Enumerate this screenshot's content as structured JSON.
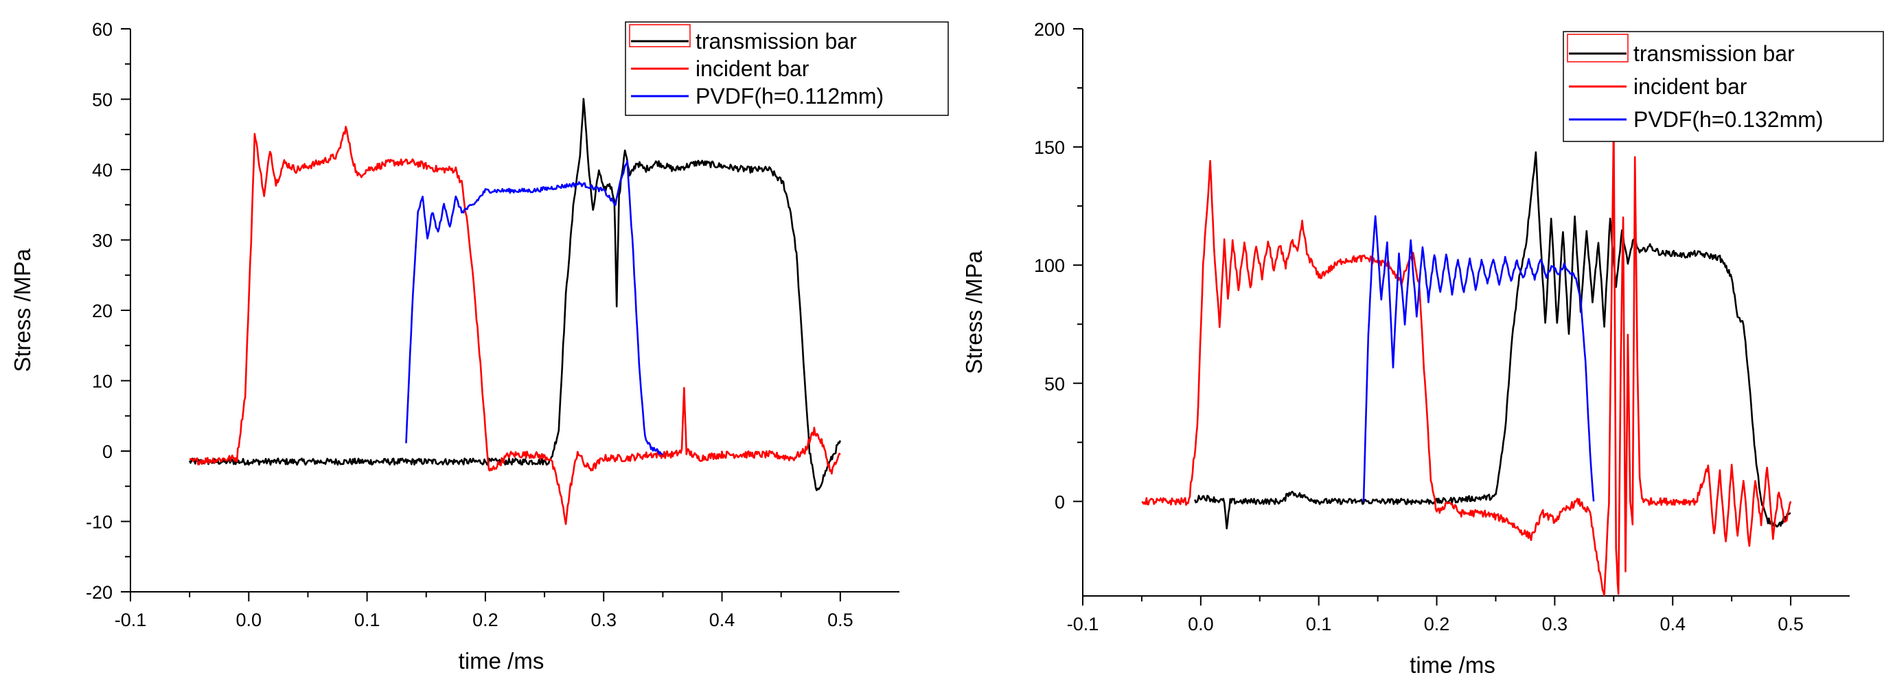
{
  "chart_data": [
    {
      "type": "line",
      "xlabel": "time /ms",
      "ylabel": "Stress /MPa",
      "xlim": [
        -0.1,
        0.55
      ],
      "ylim": [
        -20,
        60
      ],
      "xticks": [
        -0.1,
        0,
        0.1,
        0.2,
        0.3,
        0.4,
        0.5
      ],
      "xtick_labels": [
        "-0.1",
        "0.0",
        "0.1",
        "0.2",
        "0.3",
        "0.4",
        "0.5"
      ],
      "yticks": [
        -20,
        -10,
        0,
        10,
        20,
        30,
        40,
        50,
        60
      ],
      "ytick_labels": [
        "-20",
        "-10",
        "0",
        "10",
        "20",
        "30",
        "40",
        "50",
        "60"
      ],
      "legend_position": "top-right",
      "series": [
        {
          "name": "transmission bar",
          "color": "#000000",
          "noise": 0.45,
          "x": [
            -0.05,
            0.0,
            0.1,
            0.2,
            0.255,
            0.262,
            0.268,
            0.275,
            0.28,
            0.283,
            0.287,
            0.291,
            0.296,
            0.3,
            0.305,
            0.309,
            0.311,
            0.313,
            0.318,
            0.322,
            0.328,
            0.335,
            0.345,
            0.36,
            0.38,
            0.4,
            0.42,
            0.44,
            0.452,
            0.458,
            0.463,
            0.468,
            0.474,
            0.48,
            0.485,
            0.49,
            0.5
          ],
          "y": [
            -1.5,
            -1.5,
            -1.5,
            -1.5,
            -1.5,
            3,
            22,
            36,
            42,
            50,
            41,
            34,
            40,
            37,
            38,
            36,
            21,
            36,
            43,
            39,
            41,
            40,
            41,
            40,
            41,
            40.5,
            40,
            40,
            38,
            34,
            28,
            15,
            0,
            -6,
            -4,
            -2,
            1.5
          ]
        },
        {
          "name": "incident bar",
          "color": "#ff0000",
          "noise": 0.5,
          "x": [
            -0.05,
            -0.01,
            -0.003,
            0.002,
            0.005,
            0.008,
            0.013,
            0.018,
            0.023,
            0.03,
            0.04,
            0.06,
            0.075,
            0.082,
            0.087,
            0.092,
            0.1,
            0.12,
            0.14,
            0.16,
            0.175,
            0.18,
            0.185,
            0.19,
            0.195,
            0.2,
            0.203,
            0.21,
            0.22,
            0.24,
            0.255,
            0.262,
            0.268,
            0.272,
            0.278,
            0.284,
            0.29,
            0.3,
            0.32,
            0.34,
            0.36,
            0.366,
            0.368,
            0.37,
            0.38,
            0.4,
            0.44,
            0.46,
            0.47,
            0.478,
            0.485,
            0.492,
            0.5
          ],
          "y": [
            -1.5,
            -1,
            8,
            30,
            45,
            42,
            36,
            43,
            38,
            41,
            40,
            41,
            42,
            46,
            42,
            39,
            40,
            41,
            41,
            40,
            40,
            38,
            32,
            24,
            14,
            3,
            -3,
            -2,
            -0.5,
            -0.5,
            -1,
            -5,
            -10,
            -5,
            0,
            -2,
            -2.5,
            -1,
            -1,
            -0.5,
            -0.5,
            0,
            9,
            0,
            -1,
            -0.5,
            -0.5,
            -1,
            0,
            3,
            1,
            -3,
            -0.5
          ]
        },
        {
          "name": "PVDF(h=0.112mm)",
          "color": "#0000ff",
          "noise": 0.3,
          "x": [
            0.133,
            0.138,
            0.143,
            0.147,
            0.151,
            0.155,
            0.16,
            0.165,
            0.17,
            0.175,
            0.18,
            0.19,
            0.2,
            0.22,
            0.24,
            0.26,
            0.28,
            0.3,
            0.31,
            0.315,
            0.32,
            0.325,
            0.33,
            0.335,
            0.34,
            0.345,
            0.35
          ],
          "y": [
            1,
            20,
            34,
            36,
            30,
            34,
            31,
            35,
            32,
            36,
            34,
            35,
            37,
            37,
            37,
            37.5,
            38,
            37,
            35,
            39,
            41,
            28,
            12,
            2,
            0.5,
            0,
            -0.5
          ]
        }
      ]
    },
    {
      "type": "line",
      "xlabel": "time /ms",
      "ylabel": "Stress /MPa",
      "xlim": [
        -0.1,
        0.55
      ],
      "ylim": [
        -40,
        200
      ],
      "xticks": [
        -0.1,
        0,
        0.1,
        0.2,
        0.3,
        0.4,
        0.5
      ],
      "xtick_labels": [
        "-0.1",
        "0.0",
        "0.1",
        "0.2",
        "0.3",
        "0.4",
        "0.5"
      ],
      "yticks": [
        0,
        50,
        100,
        150,
        200
      ],
      "ytick_labels": [
        "0",
        "50",
        "100",
        "150",
        "200"
      ],
      "legend_position": "top-right",
      "series": [
        {
          "name": "transmission bar",
          "color": "#000000",
          "noise": 1.2,
          "x": [
            -0.005,
            0.0,
            0.02,
            0.022,
            0.025,
            0.05,
            0.07,
            0.075,
            0.1,
            0.15,
            0.2,
            0.25,
            0.258,
            0.264,
            0.27,
            0.276,
            0.28,
            0.284,
            0.288,
            0.292,
            0.297,
            0.302,
            0.307,
            0.312,
            0.317,
            0.322,
            0.327,
            0.332,
            0.337,
            0.342,
            0.347,
            0.352,
            0.357,
            0.362,
            0.367,
            0.372,
            0.38,
            0.39,
            0.4,
            0.41,
            0.42,
            0.43,
            0.44,
            0.45,
            0.455,
            0.46,
            0.465,
            0.47,
            0.475,
            0.48,
            0.49,
            0.5
          ],
          "y": [
            0,
            2,
            0,
            -12,
            0,
            0,
            0,
            4,
            0,
            0,
            0,
            2,
            30,
            70,
            95,
            110,
            130,
            147,
            110,
            75,
            120,
            75,
            115,
            70,
            120,
            80,
            115,
            85,
            110,
            75,
            120,
            90,
            115,
            100,
            112,
            105,
            108,
            105,
            105,
            104,
            105,
            104,
            103,
            95,
            78,
            75,
            50,
            20,
            0,
            -8,
            -10,
            -5
          ]
        },
        {
          "name": "incident bar",
          "color": "#ff0000",
          "noise": 1.5,
          "x": [
            -0.05,
            -0.01,
            -0.003,
            0.002,
            0.008,
            0.012,
            0.016,
            0.02,
            0.023,
            0.027,
            0.032,
            0.037,
            0.042,
            0.047,
            0.052,
            0.057,
            0.062,
            0.067,
            0.072,
            0.077,
            0.082,
            0.086,
            0.09,
            0.095,
            0.1,
            0.12,
            0.14,
            0.16,
            0.17,
            0.175,
            0.18,
            0.185,
            0.19,
            0.195,
            0.2,
            0.21,
            0.22,
            0.24,
            0.26,
            0.27,
            0.28,
            0.29,
            0.3,
            0.31,
            0.32,
            0.33,
            0.336,
            0.342,
            0.346,
            0.35,
            0.352,
            0.354,
            0.356,
            0.358,
            0.36,
            0.362,
            0.364,
            0.366,
            0.368,
            0.37,
            0.372,
            0.374,
            0.376,
            0.4,
            0.42,
            0.43,
            0.435,
            0.44,
            0.445,
            0.45,
            0.455,
            0.46,
            0.465,
            0.47,
            0.475,
            0.48,
            0.485,
            0.49,
            0.495,
            0.5
          ],
          "y": [
            0,
            0,
            30,
            100,
            143,
            100,
            75,
            110,
            85,
            110,
            90,
            110,
            90,
            108,
            95,
            110,
            98,
            108,
            100,
            110,
            105,
            118,
            105,
            100,
            95,
            102,
            103,
            100,
            92,
            100,
            104,
            92,
            50,
            10,
            -5,
            0,
            -5,
            -5,
            -8,
            -12,
            -15,
            -5,
            -8,
            -3,
            0,
            -5,
            -25,
            -40,
            0,
            160,
            -20,
            -40,
            60,
            120,
            -30,
            70,
            0,
            -10,
            145,
            60,
            10,
            2,
            0,
            0,
            0,
            15,
            -15,
            12,
            -18,
            15,
            -15,
            10,
            -20,
            10,
            -10,
            15,
            -15,
            5,
            -10,
            0
          ]
        },
        {
          "name": "PVDF(h=0.132mm)",
          "color": "#0000ff",
          "noise": 0.8,
          "x": [
            0.138,
            0.142,
            0.145,
            0.148,
            0.153,
            0.158,
            0.163,
            0.168,
            0.173,
            0.178,
            0.183,
            0.188,
            0.193,
            0.198,
            0.203,
            0.208,
            0.213,
            0.218,
            0.223,
            0.228,
            0.233,
            0.238,
            0.243,
            0.248,
            0.253,
            0.258,
            0.263,
            0.268,
            0.273,
            0.278,
            0.283,
            0.288,
            0.293,
            0.298,
            0.303,
            0.308,
            0.313,
            0.318,
            0.322,
            0.326,
            0.33,
            0.333
          ],
          "y": [
            0,
            70,
            100,
            121,
            85,
            110,
            57,
            105,
            75,
            110,
            78,
            108,
            85,
            105,
            88,
            105,
            88,
            103,
            88,
            103,
            90,
            102,
            92,
            103,
            92,
            103,
            93,
            102,
            94,
            102,
            94,
            103,
            95,
            100,
            96,
            100,
            97,
            95,
            85,
            60,
            20,
            0
          ]
        }
      ]
    }
  ]
}
